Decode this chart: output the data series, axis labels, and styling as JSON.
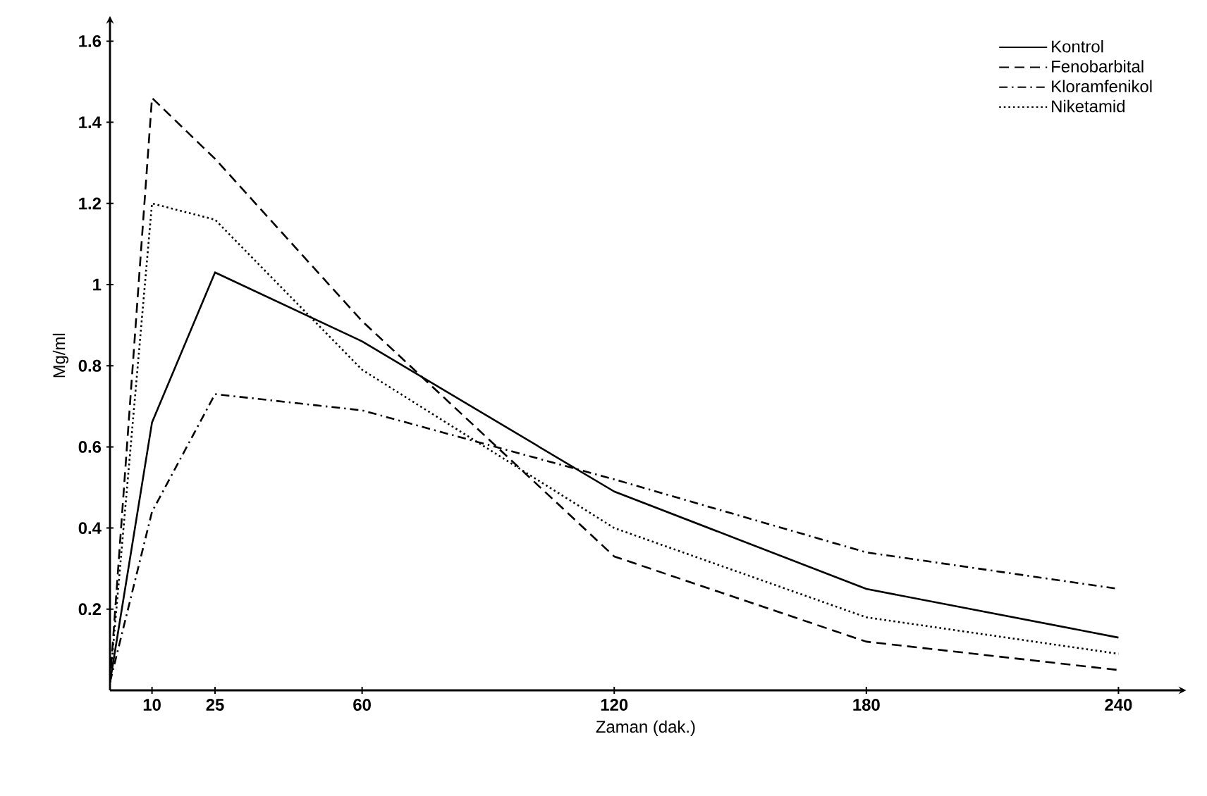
{
  "chart_data": {
    "type": "line",
    "xlabel": "Zaman (dak.)",
    "ylabel": "Mg/ml",
    "x": [
      0,
      10,
      25,
      60,
      120,
      180,
      240
    ],
    "series": [
      {
        "name": "Kontrol",
        "color": "#000000",
        "line_style": "solid",
        "values": [
          0.02,
          0.66,
          1.03,
          0.86,
          0.49,
          0.25,
          0.13
        ]
      },
      {
        "name": "Fenobarbital",
        "color": "#000000",
        "line_style": "dashed",
        "values": [
          0.02,
          1.46,
          1.31,
          0.91,
          0.33,
          0.12,
          0.05
        ]
      },
      {
        "name": "Kloramfenikol",
        "color": "#000000",
        "line_style": "dashdot",
        "values": [
          0.02,
          0.44,
          0.73,
          0.69,
          0.52,
          0.34,
          0.25
        ]
      },
      {
        "name": "Niketamid",
        "color": "#000000",
        "line_style": "dotted",
        "values": [
          0.02,
          1.2,
          1.16,
          0.79,
          0.4,
          0.18,
          0.09
        ]
      }
    ],
    "xlim": [
      0,
      255
    ],
    "ylim": [
      0,
      1.65
    ],
    "xticks": [
      10,
      25,
      60,
      120,
      180,
      240
    ],
    "yticks": [
      0.2,
      0.4,
      0.6,
      0.8,
      1,
      1.2,
      1.4,
      1.6
    ],
    "legend": "top right",
    "grid": false
  }
}
